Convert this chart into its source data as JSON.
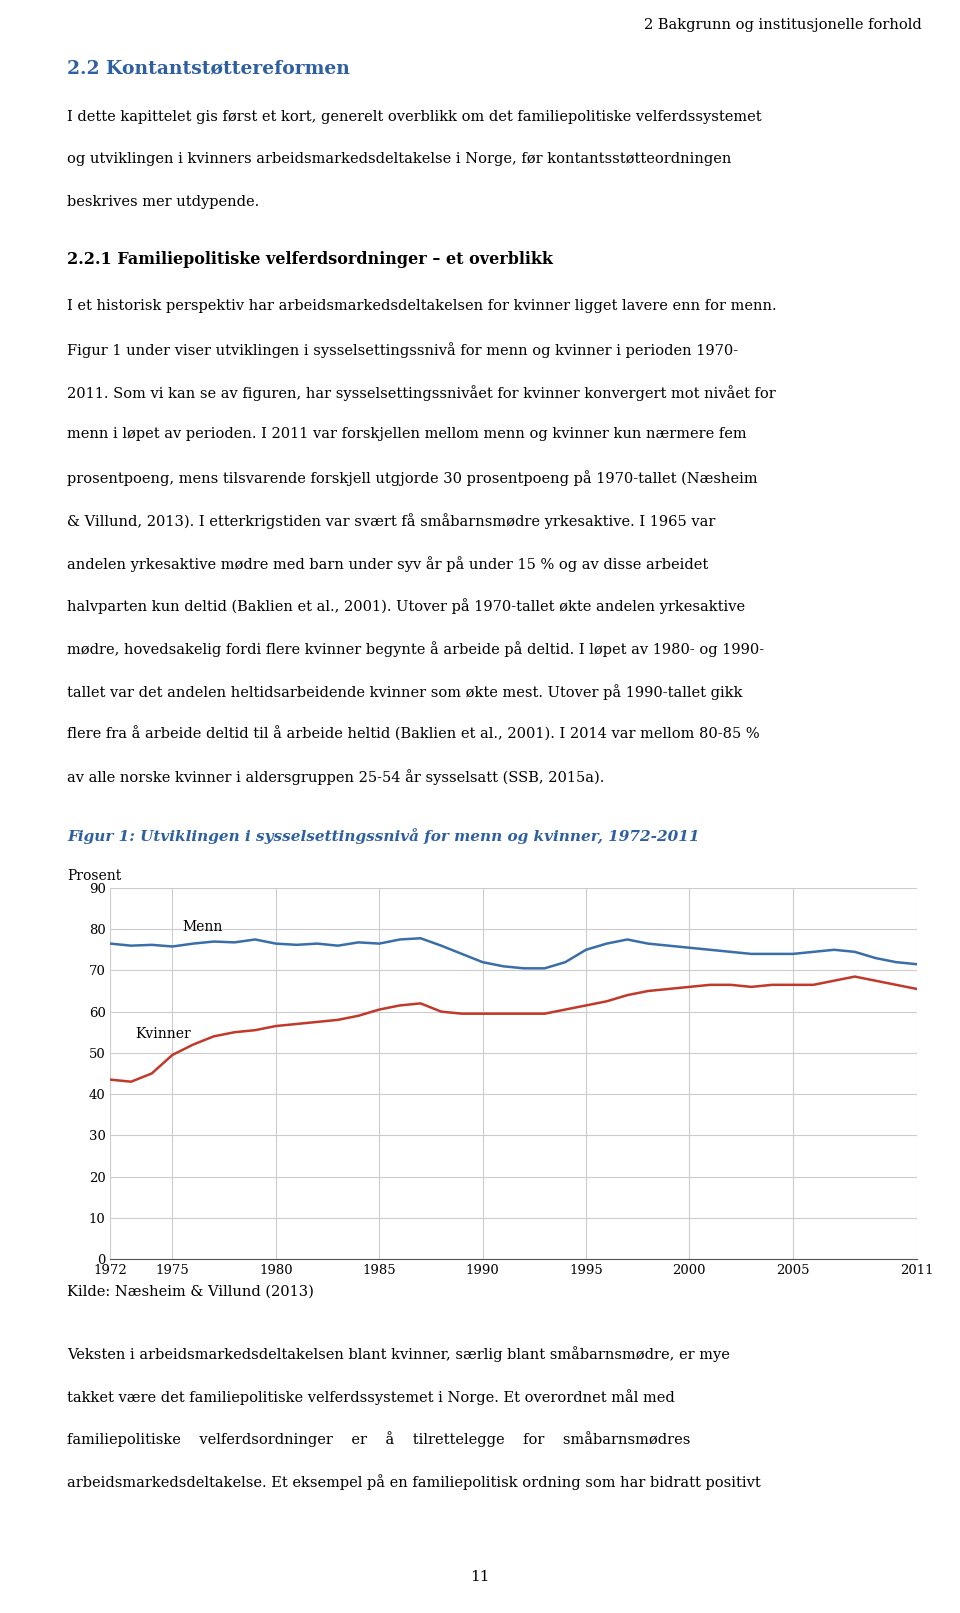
{
  "page_header": "2 Bakgrunn og institusjonelle forhold",
  "section_title": "2.2 Kontantstøttereformen",
  "section_title_color": "#2E5FA3",
  "subsection_title": "2.2.1 Familiepolitiske velferdsordninger – et overblikk",
  "figure_title": "Figur 1: Utviklingen i sysselsettingssnivå for menn og kvinner, 1972-2011",
  "figure_title_color": "#2E5FA3",
  "ylabel": "Prosent",
  "yticks": [
    0,
    10,
    20,
    30,
    40,
    50,
    60,
    70,
    80,
    90
  ],
  "xticks": [
    1972,
    1975,
    1980,
    1985,
    1990,
    1995,
    2000,
    2005,
    2011
  ],
  "source_text": "Kilde: Næsheim & Villund (2013)",
  "page_number": "11",
  "para1_lines": [
    "I dette kapittelet gis først et kort, generelt overblikk om det familiepolitiske velferdssystemet",
    "og utviklingen i kvinners arbeidsmarkedsdeltakelse i Norge, før kontantsstøtteordningen",
    "beskrives mer utdypende."
  ],
  "para2_lines": [
    "I et historisk perspektiv har arbeidsmarkedsdeltakelsen for kvinner ligget lavere enn for menn.",
    "Figur 1 under viser utviklingen i sysselsettingssnivå for menn og kvinner i perioden 1970-",
    "2011. Som vi kan se av figuren, har sysselsettingssnivået for kvinner konvergert mot nivået for",
    "menn i løpet av perioden. I 2011 var forskjellen mellom menn og kvinner kun nærmere fem",
    "prosentpoeng, mens tilsvarende forskjell utgjorde 30 prosentpoeng på 1970-tallet (Næsheim",
    "& Villund, 2013). I etterkrigstiden var svært få småbarnsmødre yrkesaktive. I 1965 var",
    "andelen yrkesaktive mødre med barn under syv år på under 15 % og av disse arbeidet",
    "halvparten kun deltid (Baklien et al., 2001). Utover på 1970-tallet økte andelen yrkesaktive",
    "mødre, hovedsakelig fordi flere kvinner begynte å arbeide på deltid. I løpet av 1980- og 1990-",
    "tallet var det andelen heltidsarbeidende kvinner som økte mest. Utover på 1990-tallet gikk",
    "flere fra å arbeide deltid til å arbeide heltid (Baklien et al., 2001). I 2014 var mellom 80-85 %",
    "av alle norske kvinner i aldersgruppen 25-54 år sysselsatt (SSB, 2015a)."
  ],
  "para3_lines": [
    "Veksten i arbeidsmarkedsdeltakelsen blant kvinner, særlig blant småbarnsmødre, er mye",
    "takket være det familiepolitiske velferdssystemet i Norge. Et overordnet mål med",
    "familiepolitiske    velferdsordninger    er    å    tilrettelegge    for    småbarnsmødres",
    "arbeidsmarkedsdeltakelse. Et eksempel på en familiepolitisk ordning som har bidratt positivt"
  ],
  "menn_years": [
    1972,
    1973,
    1974,
    1975,
    1976,
    1977,
    1978,
    1979,
    1980,
    1981,
    1982,
    1983,
    1984,
    1985,
    1986,
    1987,
    1988,
    1989,
    1990,
    1991,
    1992,
    1993,
    1994,
    1995,
    1996,
    1997,
    1998,
    1999,
    2000,
    2001,
    2002,
    2003,
    2004,
    2005,
    2006,
    2007,
    2008,
    2009,
    2010,
    2011
  ],
  "menn_values": [
    76.5,
    76.0,
    76.2,
    75.8,
    76.5,
    77.0,
    76.8,
    77.5,
    76.5,
    76.2,
    76.5,
    76.0,
    76.8,
    76.5,
    77.5,
    77.8,
    76.0,
    74.0,
    72.0,
    71.0,
    70.5,
    70.5,
    72.0,
    75.0,
    76.5,
    77.5,
    76.5,
    76.0,
    75.5,
    75.0,
    74.5,
    74.0,
    74.0,
    74.0,
    74.5,
    75.0,
    74.5,
    73.0,
    72.0,
    71.5
  ],
  "menn_color": "#3A6EA8",
  "menn_label": "Menn",
  "kvinner_years": [
    1972,
    1973,
    1974,
    1975,
    1976,
    1977,
    1978,
    1979,
    1980,
    1981,
    1982,
    1983,
    1984,
    1985,
    1986,
    1987,
    1988,
    1989,
    1990,
    1991,
    1992,
    1993,
    1994,
    1995,
    1996,
    1997,
    1998,
    1999,
    2000,
    2001,
    2002,
    2003,
    2004,
    2005,
    2006,
    2007,
    2008,
    2009,
    2010,
    2011
  ],
  "kvinner_values": [
    43.5,
    43.0,
    45.0,
    49.5,
    52.0,
    54.0,
    55.0,
    55.5,
    56.5,
    57.0,
    57.5,
    58.0,
    59.0,
    60.5,
    61.5,
    62.0,
    60.0,
    59.5,
    59.5,
    59.5,
    59.5,
    59.5,
    60.5,
    61.5,
    62.5,
    64.0,
    65.0,
    65.5,
    66.0,
    66.5,
    66.5,
    66.0,
    66.5,
    66.5,
    66.5,
    67.5,
    68.5,
    67.5,
    66.5,
    65.5
  ],
  "kvinner_color": "#C0392B",
  "kvinner_label": "Kvinner",
  "grid_color": "#CCCCCC",
  "bg_color": "#FFFFFF",
  "text_color": "#000000"
}
